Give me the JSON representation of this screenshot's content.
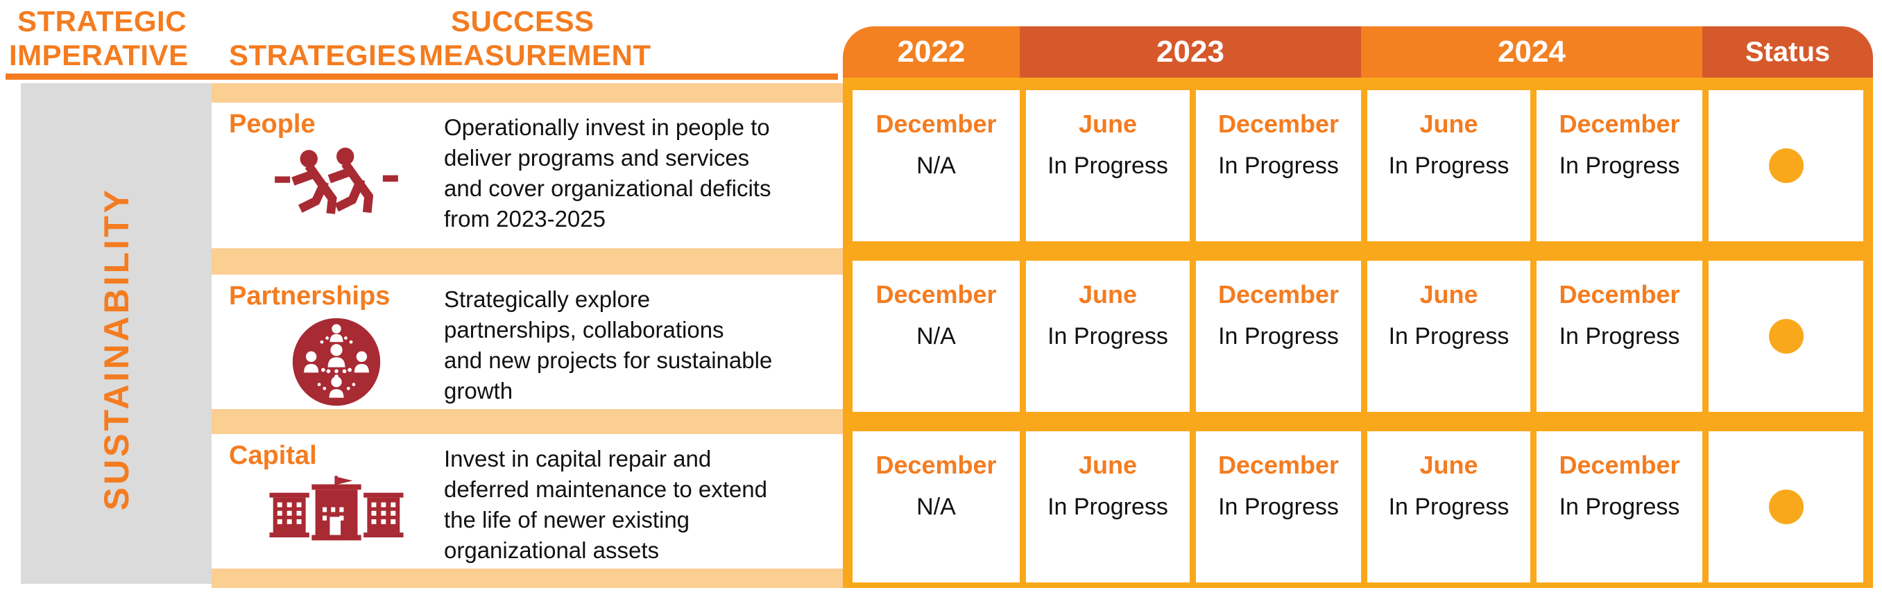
{
  "header": {
    "imperative_line1": "STRATEGIC",
    "imperative_line2": "IMPERATIVE",
    "strategies": "STRATEGIES",
    "success_line1": "SUCCESS",
    "success_line2": "MEASUREMENT",
    "years": [
      {
        "label": "2022",
        "tone": "orange"
      },
      {
        "label": "2023",
        "tone": "dark"
      },
      {
        "label": "2024",
        "tone": "orange"
      },
      {
        "label": "Status",
        "tone": "dark"
      }
    ]
  },
  "imperative": {
    "label": "SUSTAINABILITY"
  },
  "rows": [
    {
      "strategy": "People",
      "icon": "tug-of-war-icon",
      "measurement_lines": [
        "Operationally invest in people to",
        "deliver programs and services",
        "and cover organizational deficits",
        "from 2023-2025"
      ],
      "cells": [
        {
          "month": "December",
          "value": "N/A"
        },
        {
          "month": "June",
          "value": "In Progress"
        },
        {
          "month": "December",
          "value": "In Progress"
        },
        {
          "month": "June",
          "value": "In Progress"
        },
        {
          "month": "December",
          "value": "In Progress"
        }
      ],
      "status": "amber-dot"
    },
    {
      "strategy": "Partnerships",
      "icon": "network-people-icon",
      "measurement_lines": [
        "Strategically explore",
        "partnerships, collaborations",
        "and new projects for sustainable",
        "growth"
      ],
      "cells": [
        {
          "month": "December",
          "value": "N/A"
        },
        {
          "month": "June",
          "value": "In Progress"
        },
        {
          "month": "December",
          "value": "In Progress"
        },
        {
          "month": "June",
          "value": "In Progress"
        },
        {
          "month": "December",
          "value": "In Progress"
        }
      ],
      "status": "amber-dot"
    },
    {
      "strategy": "Capital",
      "icon": "building-icon",
      "measurement_lines": [
        "Invest in capital repair and",
        "deferred maintenance to extend",
        "the life of newer existing",
        "organizational assets"
      ],
      "cells": [
        {
          "month": "December",
          "value": "N/A"
        },
        {
          "month": "June",
          "value": "In Progress"
        },
        {
          "month": "December",
          "value": "In Progress"
        },
        {
          "month": "June",
          "value": "In Progress"
        },
        {
          "month": "December",
          "value": "In Progress"
        }
      ],
      "status": "amber-dot"
    }
  ],
  "colors": {
    "orange": "#F47C20",
    "year_orange": "#F38021",
    "year_dark": "#D6592B",
    "amber": "#F9A81B",
    "peach": "#FBCE92",
    "gray": "#DBDBDB",
    "icon_red": "#A82A33"
  }
}
